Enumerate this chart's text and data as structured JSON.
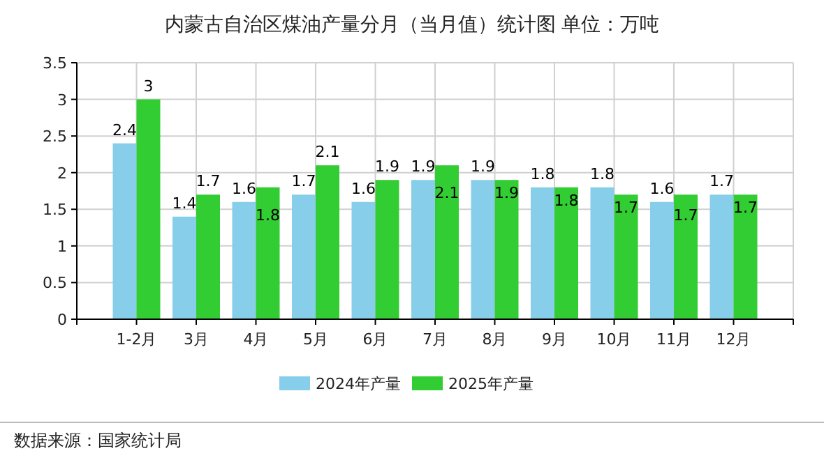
{
  "chart_data": {
    "type": "bar",
    "title": "内蒙古自治区煤油产量分月（当月值）统计图 单位：万吨",
    "categories": [
      "1-2月",
      "3月",
      "4月",
      "5月",
      "6月",
      "7月",
      "8月",
      "9月",
      "10月",
      "11月",
      "12月"
    ],
    "series": [
      {
        "name": "2024年产量",
        "color": "#87ceeb",
        "values": [
          2.4,
          1.4,
          1.6,
          1.7,
          1.6,
          1.9,
          1.9,
          1.8,
          1.8,
          1.6,
          1.7
        ]
      },
      {
        "name": "2025年产量",
        "color": "#32cd32",
        "values": [
          3,
          1.7,
          1.8,
          2.1,
          1.9,
          2.1,
          1.9,
          1.8,
          1.7,
          1.7,
          1.7
        ]
      }
    ],
    "ylim": [
      0,
      3.5
    ],
    "yticks": [
      0,
      0.5,
      1,
      1.5,
      2,
      2.5,
      3,
      3.5
    ],
    "grid": true,
    "legend": "bottom",
    "data_labels": true,
    "annotations": [
      "数据来源：国家统计局"
    ]
  }
}
